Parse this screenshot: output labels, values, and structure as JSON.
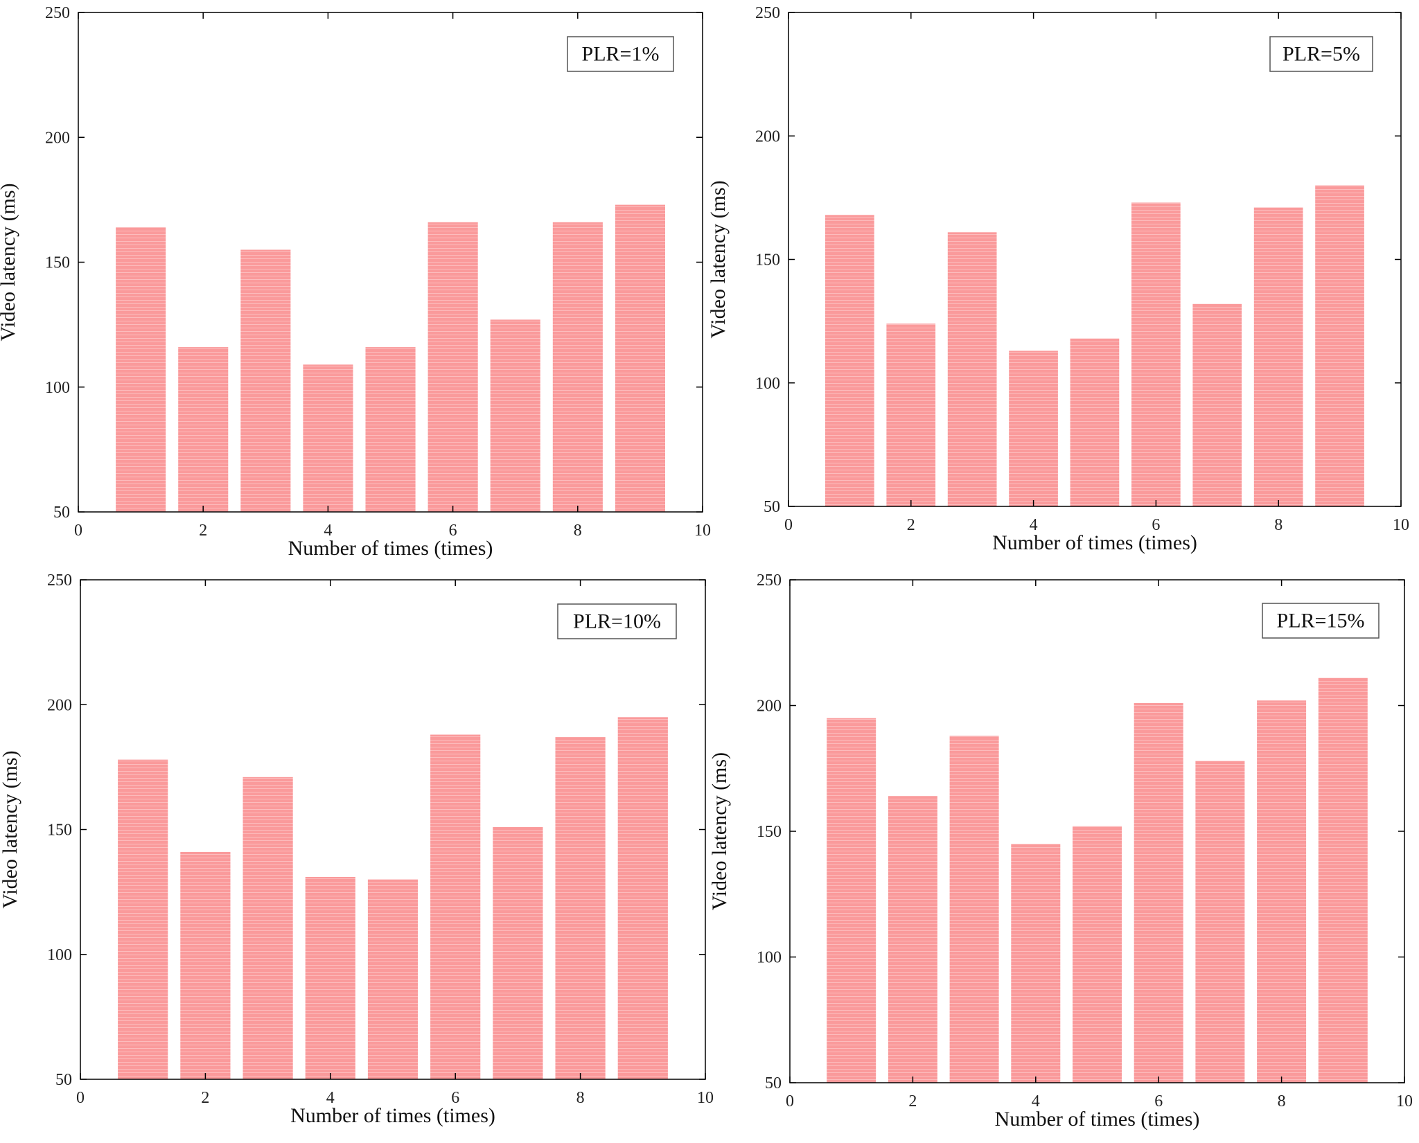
{
  "colors": {
    "bar": "#fa9a9b",
    "bar_stripe": "#fcbcbd",
    "axis": "#000000",
    "text": "#111111"
  },
  "chart_data": [
    {
      "type": "bar",
      "title": "",
      "annotation": "PLR=1%",
      "xlabel": "Number of times (times)",
      "ylabel": "Video latency (ms)",
      "xlim": [
        0,
        10
      ],
      "ylim": [
        50,
        250
      ],
      "x_ticks": [
        "0",
        "2",
        "4",
        "6",
        "8",
        "10"
      ],
      "y_ticks": [
        "50",
        "100",
        "150",
        "200",
        "250"
      ],
      "x": [
        1,
        2,
        3,
        4,
        5,
        6,
        7,
        8,
        9
      ],
      "values": [
        164,
        116,
        155,
        109,
        116,
        166,
        127,
        166,
        173
      ]
    },
    {
      "type": "bar",
      "title": "",
      "annotation": "PLR=5%",
      "xlabel": "Number of times (times)",
      "ylabel": "Video latency (ms)",
      "xlim": [
        0,
        10
      ],
      "ylim": [
        50,
        250
      ],
      "x_ticks": [
        "0",
        "2",
        "4",
        "6",
        "8",
        "10"
      ],
      "y_ticks": [
        "50",
        "100",
        "150",
        "200",
        "250"
      ],
      "x": [
        1,
        2,
        3,
        4,
        5,
        6,
        7,
        8,
        9
      ],
      "values": [
        168,
        124,
        161,
        113,
        118,
        173,
        132,
        171,
        180
      ]
    },
    {
      "type": "bar",
      "title": "",
      "annotation": "PLR=10%",
      "xlabel": "Number of times (times)",
      "ylabel": "Video latency (ms)",
      "xlim": [
        0,
        10
      ],
      "ylim": [
        50,
        250
      ],
      "x_ticks": [
        "0",
        "2",
        "4",
        "6",
        "8",
        "10"
      ],
      "y_ticks": [
        "50",
        "100",
        "150",
        "200",
        "250"
      ],
      "x": [
        1,
        2,
        3,
        4,
        5,
        6,
        7,
        8,
        9
      ],
      "values": [
        178,
        141,
        171,
        131,
        130,
        188,
        151,
        187,
        195
      ]
    },
    {
      "type": "bar",
      "title": "",
      "annotation": "PLR=15%",
      "xlabel": "Number of times (times)",
      "ylabel": "Video latency (ms)",
      "xlim": [
        0,
        10
      ],
      "ylim": [
        50,
        250
      ],
      "x_ticks": [
        "0",
        "2",
        "4",
        "6",
        "8",
        "10"
      ],
      "y_ticks": [
        "50",
        "100",
        "150",
        "200",
        "250"
      ],
      "x": [
        1,
        2,
        3,
        4,
        5,
        6,
        7,
        8,
        9
      ],
      "values": [
        195,
        164,
        188,
        145,
        152,
        201,
        178,
        202,
        211
      ]
    }
  ]
}
